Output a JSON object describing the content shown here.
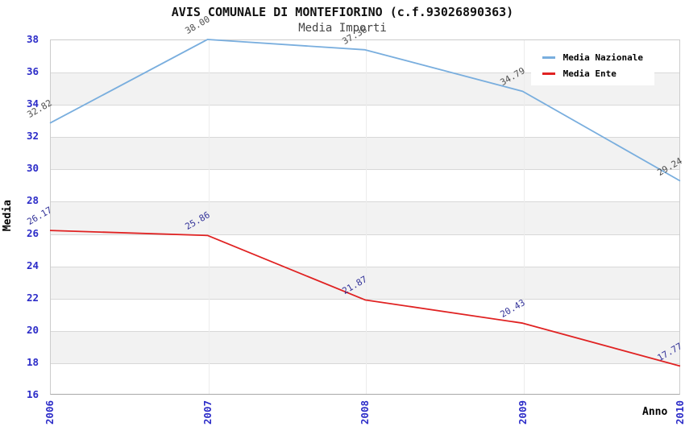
{
  "title": "AVIS COMUNALE DI MONTEFIORINO (c.f.93026890363)",
  "subtitle": "Media Importi",
  "chart_data": {
    "type": "line",
    "x": [
      "2006",
      "2007",
      "2008",
      "2009",
      "2010"
    ],
    "series": [
      {
        "name": "Media Nazionale",
        "color": "#79aede",
        "label_color": "#4d4d4d",
        "values": [
          32.82,
          38.0,
          37.36,
          34.79,
          29.24
        ]
      },
      {
        "name": "Media Ente",
        "color": "#e02222",
        "label_color": "#333399",
        "values": [
          26.17,
          25.86,
          21.87,
          20.43,
          17.77
        ]
      }
    ],
    "xlabel": "Anno",
    "ylabel": "Media",
    "ylim": [
      16,
      38
    ],
    "ytick_step": 2,
    "yticks": [
      16,
      18,
      20,
      22,
      24,
      26,
      28,
      30,
      32,
      34,
      36,
      38
    ],
    "grid": "alternating-horizontal-bands",
    "band_color": "#f2f2f2",
    "hgrid_color": "#d8d8d8",
    "tick_label_color": "#2c2cc8",
    "legend_position": "top-right",
    "point_labels_visible": true
  }
}
